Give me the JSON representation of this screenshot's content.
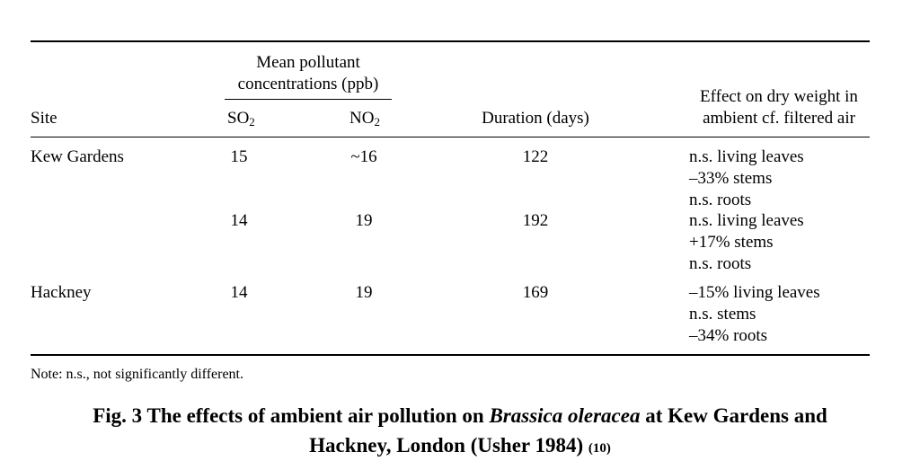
{
  "table": {
    "group_header_line1": "Mean pollutant",
    "group_header_line2": "concentrations (ppb)",
    "col_site": "Site",
    "col_so2_base": "SO",
    "col_so2_sub": "2",
    "col_no2_base": "NO",
    "col_no2_sub": "2",
    "col_duration": "Duration (days)",
    "col_effect_line1": "Effect on dry weight in",
    "col_effect_line2": "ambient cf. filtered air",
    "rows": [
      {
        "site": "Kew Gardens",
        "so2": "15",
        "no2": "~16",
        "duration": "122",
        "effects": [
          "n.s. living leaves",
          "–33% stems",
          "n.s. roots"
        ]
      },
      {
        "site": "",
        "so2": "14",
        "no2": "19",
        "duration": "192",
        "effects": [
          "n.s. living leaves",
          "+17% stems",
          "n.s. roots"
        ]
      },
      {
        "site": "Hackney",
        "so2": "14",
        "no2": "19",
        "duration": "169",
        "effects": [
          "–15% living leaves",
          "n.s. stems",
          "–34% roots"
        ]
      }
    ],
    "note": "Note: n.s., not significantly different."
  },
  "caption": {
    "part1": "Fig. 3 The effects of ambient air pollution on ",
    "species": "Brassica oleracea",
    "part2": " at Kew Gardens and",
    "line2": "Hackney, London (Usher 1984) ",
    "ref": "(10)"
  }
}
